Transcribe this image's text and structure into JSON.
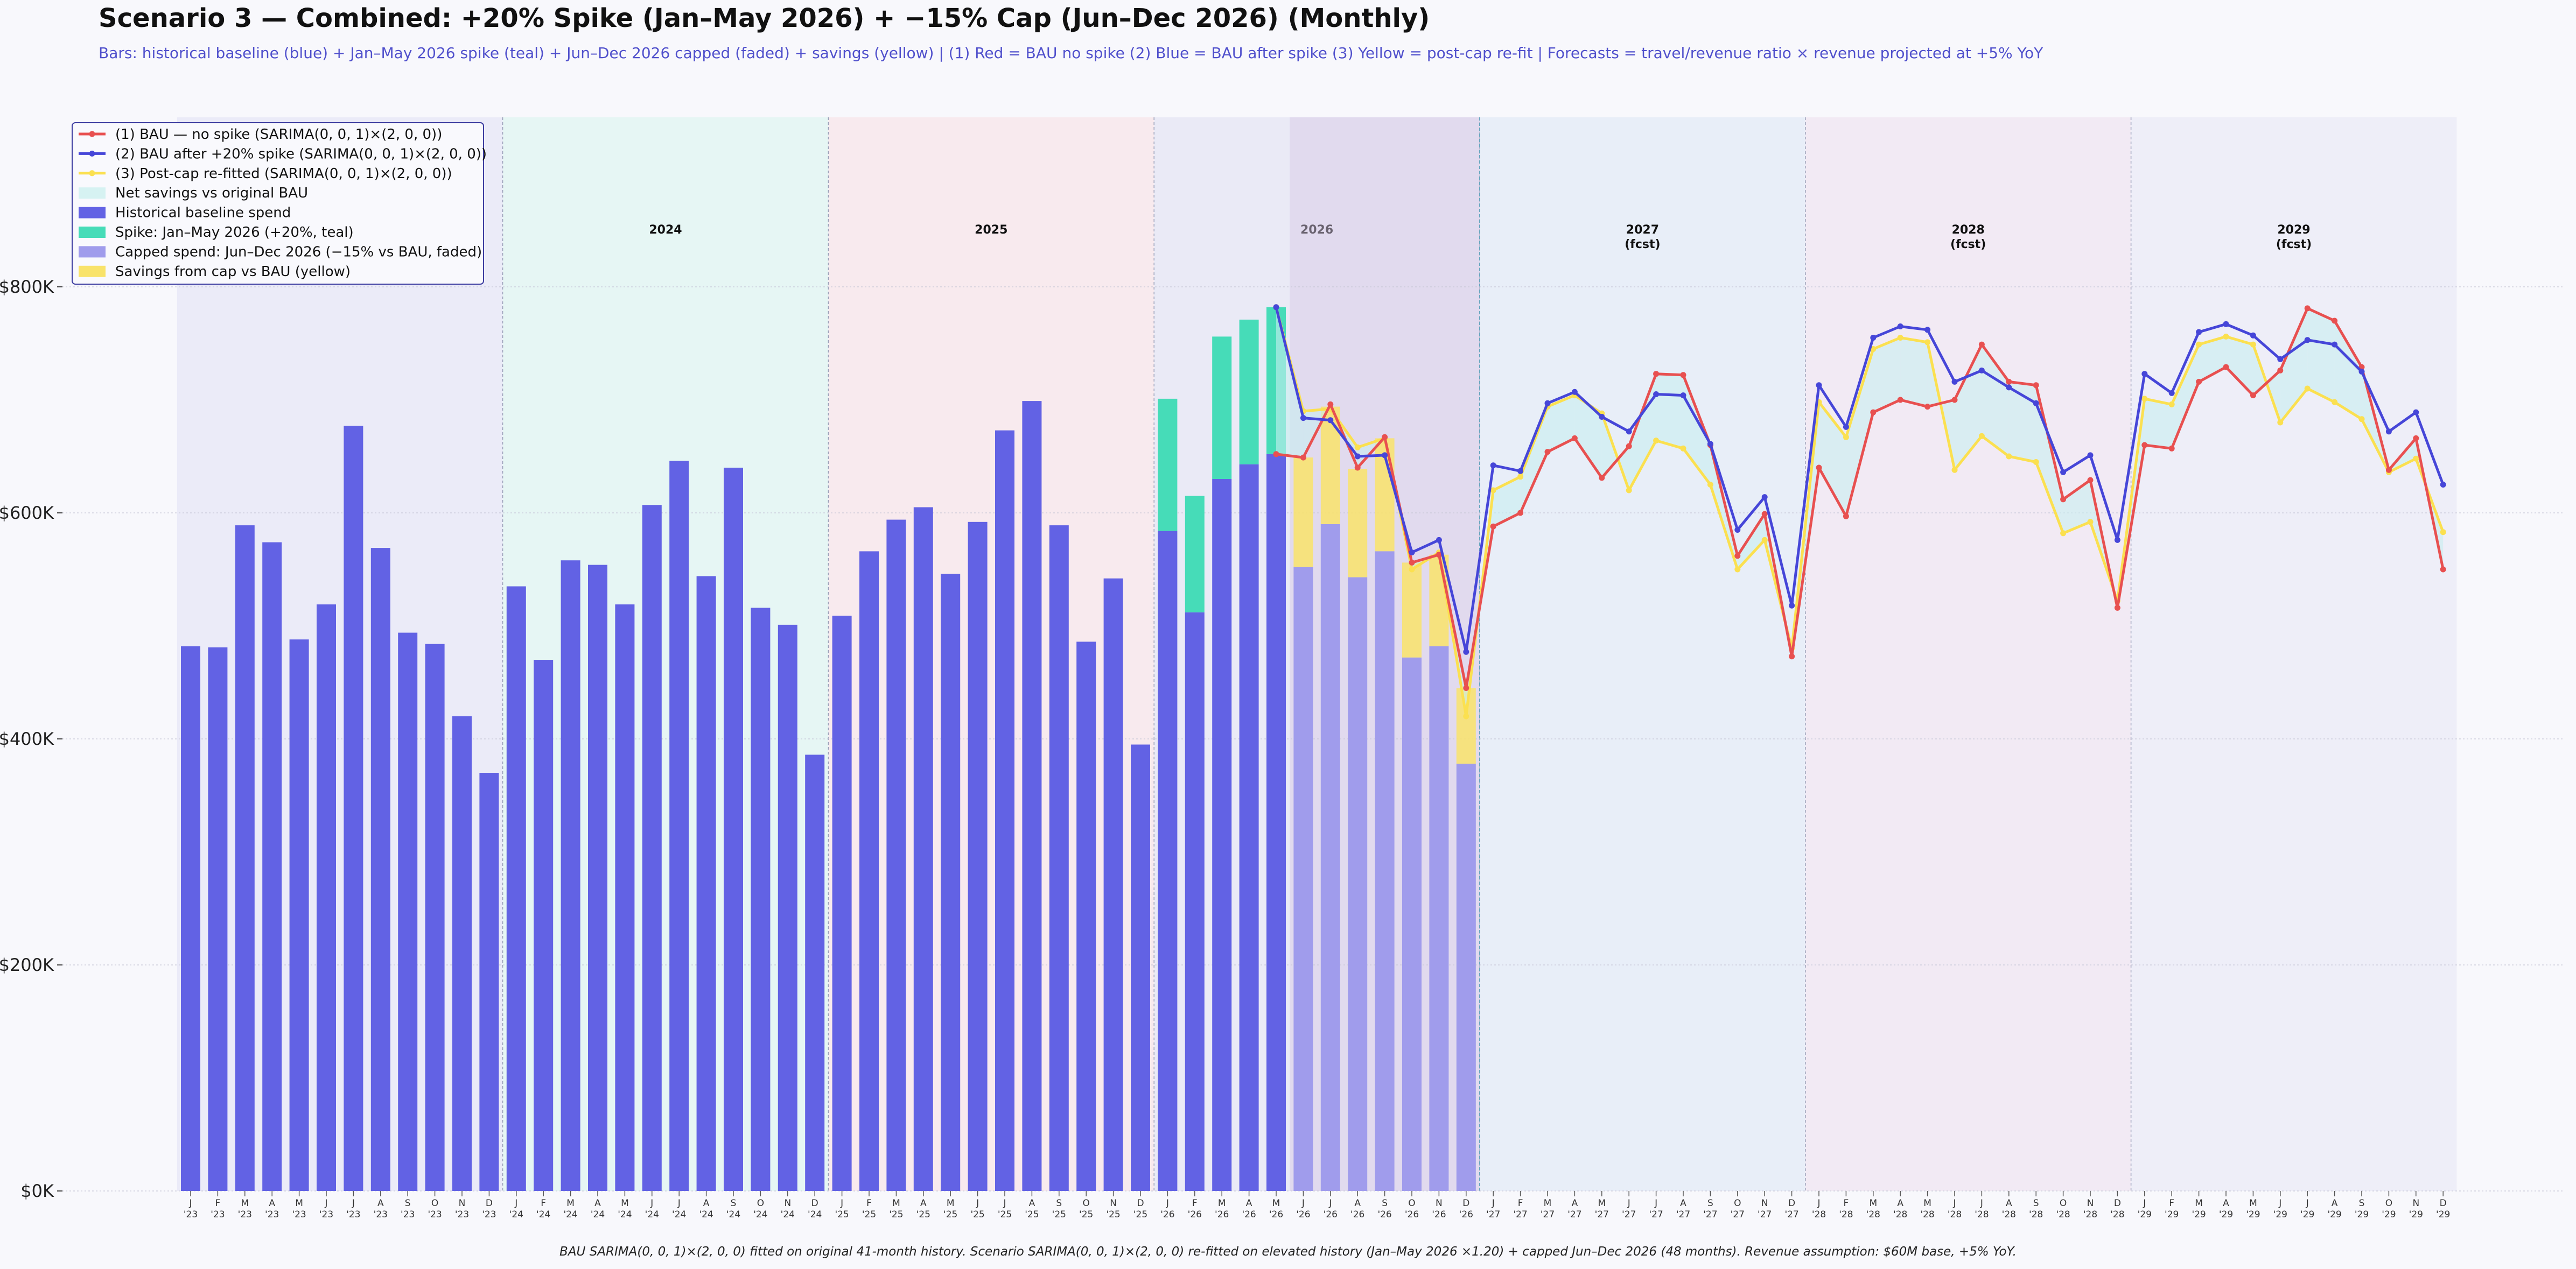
{
  "title": "Scenario 3 — Combined: +20% Spike (Jan–May 2026) + −15% Cap (Jun–Dec 2026) (Monthly)",
  "subtitle": "Bars: historical baseline (blue) + Jan–May 2026 spike (teal) + Jun–Dec 2026 capped (faded) + savings (yellow)  |  (1) Red = BAU no spike  (2) Blue = BAU after spike  (3) Yellow = post-cap re-fit  |  Forecasts = travel/revenue ratio × revenue projected at +5% YoY",
  "footnote": "BAU SARIMA(0, 0, 1)×(2, 0, 0) fitted on original 41-month history.  Scenario SARIMA(0, 0, 1)×(2, 0, 0) re-fitted on elevated history (Jan–May 2026 ×1.20) + capped Jun–Dec 2026 (48 months).  Revenue assumption: $60M base, +5% YoY.",
  "colors": {
    "baseline": "#6262e4",
    "spike": "#46dcb8",
    "capped": "#a09cec",
    "savings": "#f9e36a",
    "red": "#e85050",
    "blue": "#4646d8",
    "yellow": "#fbe050",
    "net_fill": "#c8eef0"
  },
  "chart_data": {
    "type": "bar",
    "ylim": [
      0,
      950000
    ],
    "yticks": [
      "$0K",
      "$200K",
      "$400K",
      "$600K",
      "$800K"
    ],
    "ytick_values": [
      0,
      200000,
      400000,
      600000,
      800000
    ],
    "grid": true,
    "legend_position": "top-left",
    "months": [
      "J",
      "F",
      "M",
      "A",
      "M",
      "J",
      "J",
      "A",
      "S",
      "O",
      "N",
      "D"
    ],
    "year_suffixes": [
      "'23",
      "'24",
      "'25",
      "'26",
      "'27",
      "'28",
      "'29"
    ],
    "year_bands": [
      {
        "label": "2023",
        "sub": "",
        "color": "#ebebf8"
      },
      {
        "label": "2024",
        "sub": "",
        "color": "#e6f6f4"
      },
      {
        "label": "2025",
        "sub": "",
        "color": "#f8eaee"
      },
      {
        "label": "2026",
        "sub": "",
        "color": "#eaeaf6"
      },
      {
        "label": "2027",
        "sub": "(fcst)",
        "color": "#e8eef8"
      },
      {
        "label": "2028",
        "sub": "(fcst)",
        "color": "#f2eaf4"
      },
      {
        "label": "2029",
        "sub": "(fcst)",
        "color": "#eeeef8"
      }
    ],
    "legend": [
      {
        "label": "(1) BAU — no spike  (SARIMA(0, 0, 1)×(2, 0, 0))",
        "kind": "line",
        "color": "#e85050"
      },
      {
        "label": "(2) BAU after +20% spike  (SARIMA(0, 0, 1)×(2, 0, 0))",
        "kind": "line",
        "color": "#4646d8"
      },
      {
        "label": "(3) Post-cap re-fitted  (SARIMA(0, 0, 1)×(2, 0, 0))",
        "kind": "line",
        "color": "#fbe050"
      },
      {
        "label": "Net savings vs original BAU",
        "kind": "patch",
        "color": "#d6f2f2"
      },
      {
        "label": "Historical baseline spend",
        "kind": "patch",
        "color": "#6262e4"
      },
      {
        "label": "Spike: Jan–May 2026 (+20%, teal)",
        "kind": "patch",
        "color": "#46dcb8"
      },
      {
        "label": "Capped spend: Jun–Dec 2026 (−15% vs BAU, faded)",
        "kind": "patch",
        "color": "#a09cec"
      },
      {
        "label": "Savings from cap vs BAU (yellow)",
        "kind": "patch",
        "color": "#f9e36a"
      }
    ],
    "baseline_history": [
      482000,
      481000,
      589000,
      574000,
      488000,
      519000,
      677000,
      569000,
      494000,
      484000,
      420000,
      370000,
      535000,
      470000,
      558000,
      554000,
      519000,
      607000,
      646000,
      544000,
      640000,
      516000,
      501000,
      386000,
      509000,
      566000,
      594000,
      605000,
      546000,
      592000,
      673000,
      699000,
      589000,
      486000,
      542000,
      395000,
      584000,
      512000,
      630000,
      643000,
      652000
    ],
    "spike_top": [
      701000,
      615000,
      756000,
      771000,
      782000
    ],
    "capped": [
      552000,
      590000,
      543000,
      566000,
      472000,
      482000,
      378000
    ],
    "savings_top": [
      649000,
      694000,
      639000,
      666000,
      556000,
      563000,
      445000
    ],
    "bau_no_spike": [
      652000,
      649000,
      696000,
      640000,
      667000,
      556000,
      563000,
      445000,
      588000,
      600000,
      654000,
      666000,
      631000,
      659000,
      723000,
      722000,
      660000,
      562000,
      599000,
      473000,
      640000,
      597000,
      689000,
      700000,
      694000,
      700000,
      749000,
      716000,
      713000,
      612000,
      629000,
      516000,
      660000,
      657000,
      716000,
      729000,
      704000,
      726000,
      781000,
      770000,
      729000,
      638000,
      666000,
      550000
    ],
    "bau_after_spike": [
      782000,
      684000,
      682000,
      650000,
      651000,
      565000,
      576000,
      477000,
      642000,
      637000,
      697000,
      707000,
      685000,
      672000,
      705000,
      704000,
      661000,
      585000,
      614000,
      518000,
      713000,
      676000,
      755000,
      765000,
      762000,
      716000,
      726000,
      711000,
      697000,
      636000,
      651000,
      576000,
      723000,
      706000,
      760000,
      767000,
      757000,
      736000,
      753000,
      749000,
      725000,
      672000,
      689000,
      625000
    ],
    "post_cap": [
      782000,
      690000,
      692000,
      658000,
      666000,
      550000,
      565000,
      420000,
      620000,
      632000,
      694000,
      704000,
      688000,
      620000,
      664000,
      657000,
      625000,
      550000,
      576000,
      480000,
      698000,
      667000,
      745000,
      755000,
      751000,
      638000,
      668000,
      650000,
      645000,
      582000,
      592000,
      522000,
      701000,
      696000,
      749000,
      756000,
      749000,
      680000,
      710000,
      698000,
      683000,
      636000,
      648000,
      583000
    ]
  }
}
